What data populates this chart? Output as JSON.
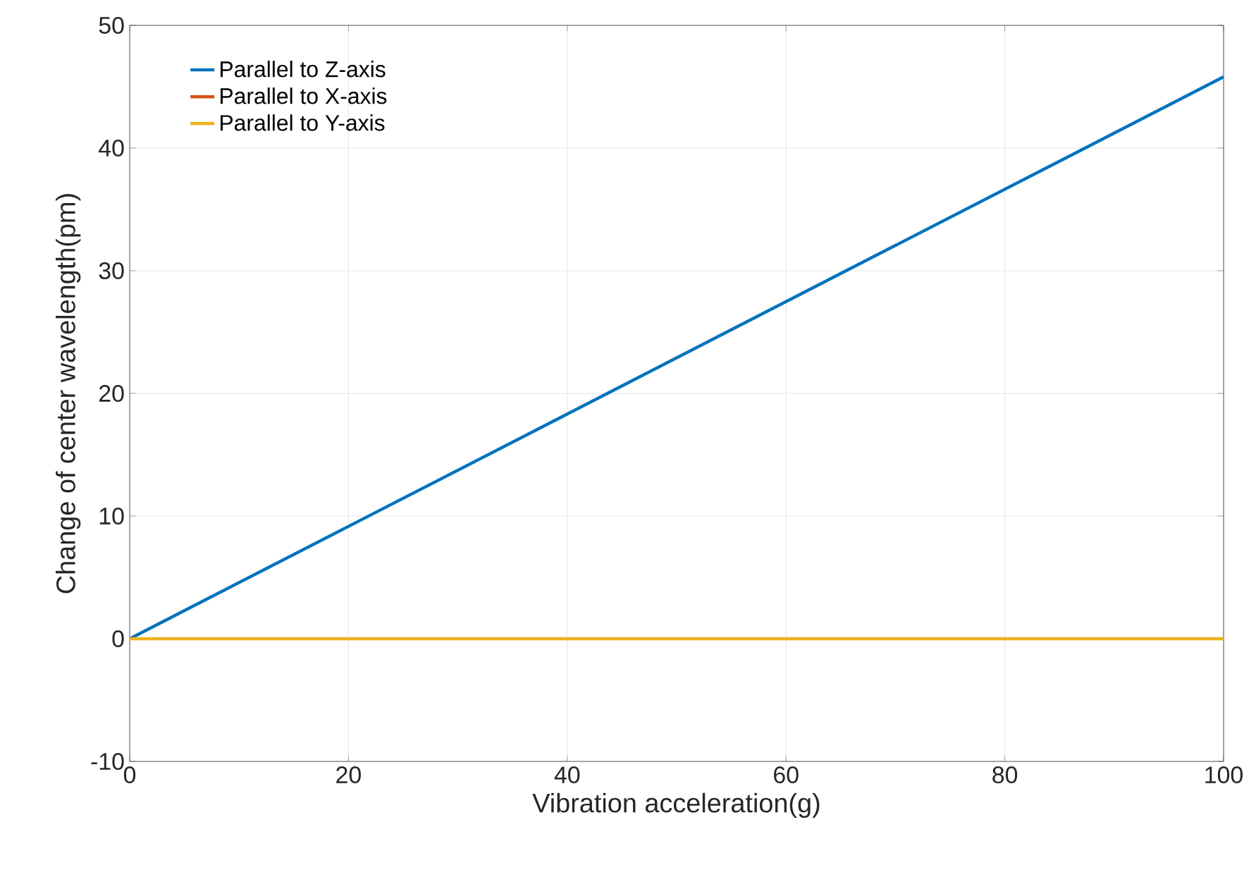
{
  "chart_data": {
    "type": "line",
    "xlabel": "Vibration acceleration(g)",
    "ylabel": "Change of center wavelength(pm)",
    "x": [
      0,
      100
    ],
    "series": [
      {
        "name": "Parallel to Z-axis",
        "color": "#0072bd",
        "values": [
          0,
          45.8
        ]
      },
      {
        "name": "Parallel to X-axis",
        "color": "#d95319",
        "values": [
          null,
          null
        ]
      },
      {
        "name": "Parallel to Y-axis",
        "color": "#edb120",
        "values": [
          0,
          0
        ]
      }
    ],
    "xlim": [
      0,
      100
    ],
    "ylim": [
      -10,
      50
    ],
    "xticks": [
      0,
      20,
      40,
      60,
      80,
      100
    ],
    "yticks": [
      -10,
      0,
      10,
      20,
      30,
      40,
      50
    ],
    "grid": true,
    "legend": "top left",
    "marker": "none",
    "line_style": "solid"
  }
}
